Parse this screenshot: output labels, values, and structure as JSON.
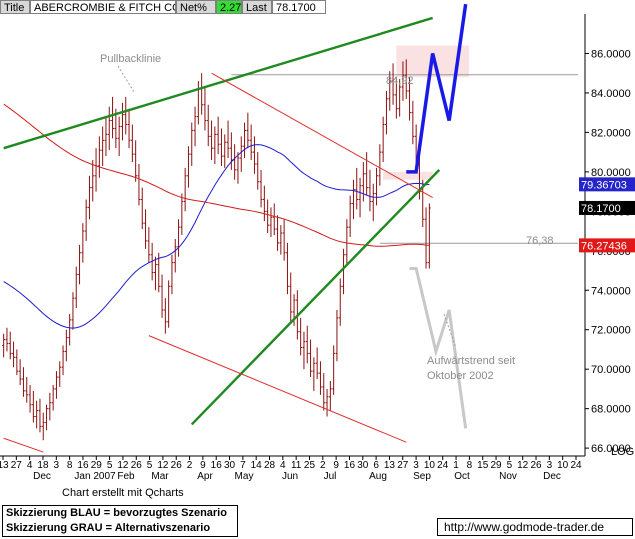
{
  "header": {
    "title_label": "Title",
    "title_value": "ABERCROMBIE & FITCH CO",
    "net_label": "Net%",
    "net_value": "2.27",
    "last_label": "Last",
    "last_value": "78.1700"
  },
  "credit": "Chart erstellt mit Qcharts",
  "legend": {
    "line1": "Skizzierung BLAU = bevorzugtes Szenario",
    "line2": "Skizzierung GRAU = Alternativszenario"
  },
  "url": "http://www.godmode-trader.de",
  "chart_data": {
    "type": "line",
    "ylim": [
      65.6,
      88.0
    ],
    "y_ticks": [
      "86.0000",
      "84.0000",
      "82.0000",
      "80.0000",
      "78.0000",
      "76.0000",
      "74.0000",
      "72.0000",
      "70.0000",
      "68.0000",
      "66.0000"
    ],
    "y_tick_values": [
      86,
      84,
      82,
      80,
      78,
      76,
      74,
      72,
      70,
      68,
      66
    ],
    "y_axis_tag": "LOG",
    "x_tick_labels": [
      "13",
      "27",
      "4",
      "18",
      "3",
      "8",
      "16",
      "29",
      "5",
      "12",
      "26",
      "5",
      "12",
      "26",
      "2",
      "9",
      "16",
      "30",
      "7",
      "14",
      "28",
      "4",
      "11",
      "25",
      "2",
      "9",
      "16",
      "30",
      "6",
      "13",
      "27",
      "3",
      "10",
      "24",
      "1",
      "8",
      "15",
      "29",
      "5",
      "12",
      "26",
      "3",
      "10",
      "24"
    ],
    "x_month_labels": [
      "Dec",
      "Jan 2007",
      "Feb",
      "Mar",
      "Apr",
      "May",
      "Jun",
      "Jul",
      "Aug",
      "Sep",
      "Oct",
      "Nov",
      "Dec"
    ],
    "price_labels": [
      {
        "label": "79.36703",
        "value": 79.367
      },
      {
        "label": "78.1700",
        "value": 78.17
      },
      {
        "label": "76.27436",
        "value": 76.274
      }
    ],
    "annotations": [
      "Pullbacklinie",
      "84,92",
      "76,38",
      "Aufwärtstrend seit",
      "Oktober 2002"
    ],
    "levels": [
      {
        "label": "84,92",
        "value": 84.92
      },
      {
        "label": "76,38",
        "value": 76.38
      }
    ],
    "series": [
      {
        "kind": "ohlc",
        "color": "#8b1010",
        "bars": [
          [
            71.2,
            71.8,
            70.6,
            71.5
          ],
          [
            71.5,
            72.1,
            70.9,
            71.3
          ],
          [
            71.3,
            71.9,
            70.5,
            70.8
          ],
          [
            70.8,
            71.4,
            70.1,
            70.6
          ],
          [
            70.6,
            71.0,
            69.7,
            69.9
          ],
          [
            69.9,
            70.5,
            69.2,
            69.5
          ],
          [
            69.5,
            70.1,
            68.6,
            68.9
          ],
          [
            68.9,
            69.6,
            68.3,
            68.7
          ],
          [
            68.7,
            69.2,
            67.8,
            68.2
          ],
          [
            68.2,
            68.9,
            67.3,
            67.6
          ],
          [
            67.6,
            68.4,
            67.0,
            67.9
          ],
          [
            67.9,
            68.5,
            66.8,
            67.1
          ],
          [
            67.1,
            67.8,
            66.4,
            67.3
          ],
          [
            67.3,
            68.2,
            66.9,
            68.0
          ],
          [
            68.0,
            68.8,
            67.4,
            68.3
          ],
          [
            68.3,
            69.2,
            67.9,
            69.0
          ],
          [
            69.0,
            69.9,
            68.5,
            69.6
          ],
          [
            69.6,
            70.4,
            69.1,
            70.1
          ],
          [
            70.1,
            71.2,
            69.7,
            70.9
          ],
          [
            70.9,
            72.0,
            70.4,
            71.6
          ],
          [
            71.6,
            72.8,
            71.2,
            72.5
          ],
          [
            72.5,
            73.9,
            72.0,
            73.6
          ],
          [
            73.6,
            75.2,
            73.1,
            74.8
          ],
          [
            74.8,
            76.3,
            74.3,
            75.9
          ],
          [
            75.9,
            77.4,
            75.4,
            77.0
          ],
          [
            77.0,
            78.6,
            76.5,
            78.2
          ],
          [
            78.2,
            79.8,
            77.6,
            79.2
          ],
          [
            79.2,
            80.6,
            78.5,
            79.8
          ],
          [
            79.8,
            81.2,
            79.0,
            80.3
          ],
          [
            80.3,
            81.8,
            79.7,
            81.1
          ],
          [
            81.1,
            82.3,
            80.3,
            81.6
          ],
          [
            81.6,
            82.8,
            80.8,
            81.9
          ],
          [
            81.9,
            83.3,
            81.1,
            82.6
          ],
          [
            82.6,
            83.8,
            81.7,
            82.2
          ],
          [
            82.2,
            83.2,
            81.2,
            81.7
          ],
          [
            81.7,
            82.8,
            80.8,
            82.3
          ],
          [
            82.3,
            83.5,
            81.6,
            82.9
          ],
          [
            82.9,
            83.8,
            81.9,
            82.4
          ],
          [
            82.4,
            83.2,
            81.2,
            81.6
          ],
          [
            81.6,
            82.4,
            80.5,
            80.9
          ],
          [
            80.9,
            81.6,
            79.5,
            79.8
          ],
          [
            79.8,
            80.4,
            78.3,
            78.6
          ],
          [
            78.6,
            79.2,
            77.1,
            77.4
          ],
          [
            77.4,
            78.1,
            76.1,
            76.5
          ],
          [
            76.5,
            77.2,
            75.4,
            75.8
          ],
          [
            75.8,
            76.4,
            74.5,
            74.9
          ],
          [
            74.9,
            75.7,
            74.0,
            75.3
          ],
          [
            75.3,
            75.9,
            73.9,
            74.2
          ],
          [
            74.2,
            74.8,
            72.6,
            73.0
          ],
          [
            73.0,
            73.6,
            71.8,
            72.4
          ],
          [
            72.4,
            74.5,
            72.1,
            74.2
          ],
          [
            74.2,
            75.8,
            73.8,
            75.4
          ],
          [
            75.4,
            76.6,
            74.9,
            76.2
          ],
          [
            76.2,
            77.6,
            75.7,
            77.2
          ],
          [
            77.2,
            78.9,
            76.8,
            78.5
          ],
          [
            78.5,
            80.2,
            78.0,
            79.8
          ],
          [
            79.8,
            81.3,
            79.2,
            80.9
          ],
          [
            80.9,
            82.5,
            80.3,
            82.1
          ],
          [
            82.1,
            83.3,
            81.3,
            82.8
          ],
          [
            82.8,
            84.6,
            82.4,
            84.2
          ],
          [
            84.2,
            85.0,
            82.9,
            83.4
          ],
          [
            83.4,
            84.3,
            82.1,
            82.6
          ],
          [
            82.6,
            83.4,
            81.3,
            81.8
          ],
          [
            81.8,
            82.6,
            80.6,
            81.2
          ],
          [
            81.2,
            82.3,
            80.4,
            81.9
          ],
          [
            81.9,
            82.8,
            80.9,
            81.4
          ],
          [
            81.4,
            82.2,
            80.3,
            80.8
          ],
          [
            80.8,
            81.9,
            80.2,
            81.5
          ],
          [
            81.5,
            82.6,
            80.7,
            81.2
          ],
          [
            81.2,
            82.0,
            80.1,
            80.6
          ],
          [
            80.6,
            81.4,
            79.6,
            80.1
          ],
          [
            80.1,
            81.0,
            79.4,
            80.7
          ],
          [
            80.7,
            81.8,
            80.0,
            81.3
          ],
          [
            81.3,
            82.5,
            80.7,
            82.1
          ],
          [
            82.1,
            83.0,
            81.2,
            81.6
          ],
          [
            81.6,
            82.4,
            80.6,
            81.0
          ],
          [
            81.0,
            81.8,
            79.9,
            80.4
          ],
          [
            80.4,
            81.0,
            79.1,
            79.5
          ],
          [
            79.5,
            80.1,
            78.2,
            78.6
          ],
          [
            78.6,
            79.3,
            77.5,
            78.0
          ],
          [
            78.0,
            78.6,
            76.9,
            77.3
          ],
          [
            77.3,
            78.2,
            76.7,
            77.7
          ],
          [
            77.7,
            78.4,
            76.8,
            77.1
          ],
          [
            77.1,
            77.8,
            76.0,
            76.4
          ],
          [
            76.4,
            77.3,
            75.8,
            76.9
          ],
          [
            76.9,
            77.6,
            75.5,
            75.9
          ],
          [
            75.9,
            76.4,
            73.8,
            74.2
          ],
          [
            74.2,
            74.9,
            72.4,
            72.9
          ],
          [
            72.9,
            73.8,
            72.2,
            73.5
          ],
          [
            73.5,
            74.0,
            71.5,
            71.9
          ],
          [
            71.9,
            72.6,
            70.7,
            71.1
          ],
          [
            71.1,
            71.9,
            70.0,
            71.4
          ],
          [
            71.4,
            72.2,
            70.3,
            70.8
          ],
          [
            70.8,
            71.5,
            69.6,
            69.9
          ],
          [
            69.9,
            70.6,
            68.9,
            70.3
          ],
          [
            70.3,
            71.1,
            69.5,
            69.8
          ],
          [
            69.8,
            70.4,
            68.7,
            69.1
          ],
          [
            69.1,
            69.8,
            67.9,
            68.3
          ],
          [
            68.3,
            69.0,
            67.6,
            68.6
          ],
          [
            68.6,
            69.4,
            67.9,
            69.0
          ],
          [
            69.0,
            71.2,
            68.7,
            70.8
          ],
          [
            70.8,
            73.0,
            70.4,
            72.6
          ],
          [
            72.6,
            74.6,
            72.2,
            74.2
          ],
          [
            74.2,
            76.1,
            73.8,
            75.8
          ],
          [
            75.8,
            77.6,
            75.3,
            77.2
          ],
          [
            77.2,
            78.8,
            76.7,
            78.4
          ],
          [
            78.4,
            79.6,
            77.6,
            79.1
          ],
          [
            79.1,
            80.2,
            78.1,
            78.6
          ],
          [
            78.6,
            79.7,
            77.7,
            79.3
          ],
          [
            79.3,
            80.5,
            78.5,
            79.9
          ],
          [
            79.9,
            81.0,
            78.8,
            79.2
          ],
          [
            79.2,
            80.1,
            78.0,
            78.5
          ],
          [
            78.5,
            79.4,
            77.5,
            78.9
          ],
          [
            78.9,
            80.2,
            78.3,
            79.8
          ],
          [
            79.8,
            81.4,
            79.3,
            81.0
          ],
          [
            81.0,
            82.8,
            80.5,
            82.4
          ],
          [
            82.4,
            84.1,
            81.9,
            83.7
          ],
          [
            83.7,
            85.1,
            83.1,
            84.6
          ],
          [
            84.6,
            85.5,
            83.4,
            83.9
          ],
          [
            83.9,
            84.8,
            82.7,
            83.2
          ],
          [
            83.2,
            84.7,
            82.8,
            84.3
          ],
          [
            84.3,
            85.6,
            83.6,
            84.9
          ],
          [
            84.9,
            85.7,
            83.7,
            84.1
          ],
          [
            84.1,
            84.8,
            82.6,
            83.0
          ],
          [
            83.0,
            83.6,
            81.4,
            81.8
          ],
          [
            81.8,
            82.4,
            80.3,
            80.7
          ],
          [
            80.7,
            81.2,
            78.6,
            79.0
          ],
          [
            79.0,
            79.6,
            77.2,
            77.6
          ],
          [
            77.6,
            78.2,
            75.1,
            75.4
          ],
          [
            75.4,
            78.4,
            75.1,
            78.17
          ]
        ]
      },
      {
        "kind": "moving-average",
        "name": "",
        "color": "#1c1cd0",
        "period": 50,
        "end_value": 79.367
      },
      {
        "kind": "moving-average",
        "name": "",
        "color": "#d01c1c",
        "period": 200,
        "end_value": 76.274
      }
    ],
    "trend_lines": [
      {
        "color": "#1f8a1f",
        "from": [
          0,
          81.2
        ],
        "to": [
          130,
          87.8
        ],
        "note": "upper trend line"
      },
      {
        "color": "#1f8a1f",
        "from": [
          57,
          67.2
        ],
        "to": [
          132,
          80.1
        ],
        "note": "Aufwärtstrend seit Oktober 2002"
      },
      {
        "color": "#e03030",
        "from": [
          63,
          85.0
        ],
        "to": [
          130,
          78.7
        ],
        "note": "Pullbacklinie (upper channel)"
      },
      {
        "color": "#e03030",
        "from": [
          44,
          71.7
        ],
        "to": [
          122,
          66.3
        ],
        "note": "lower channel"
      },
      {
        "color": "#e03030",
        "from": [
          0,
          66.5
        ],
        "to": [
          12,
          65.8
        ],
        "note": "lower channel left"
      }
    ],
    "scenarios": [
      {
        "name": "BLAU = bevorzugtes Szenario",
        "color": "#1a1ae6",
        "points": [
          [
            122,
            80.0
          ],
          [
            125,
            80.0
          ],
          [
            130,
            86.0
          ],
          [
            135,
            82.6
          ],
          [
            140,
            88.5
          ]
        ]
      },
      {
        "name": "GRAU = Alternativszenario",
        "color": "#c8c8c8",
        "points": [
          [
            123,
            75.1
          ],
          [
            125,
            75.1
          ],
          [
            131,
            70.9
          ],
          [
            135,
            73.0
          ],
          [
            140,
            67.0
          ]
        ]
      }
    ],
    "resistance_zones": [
      {
        "from_x": 119,
        "to_x": 141,
        "from": 84.8,
        "to": 86.4
      },
      {
        "from_x": 115,
        "to_x": 130,
        "from": 79.6,
        "to": 80.0
      }
    ]
  }
}
